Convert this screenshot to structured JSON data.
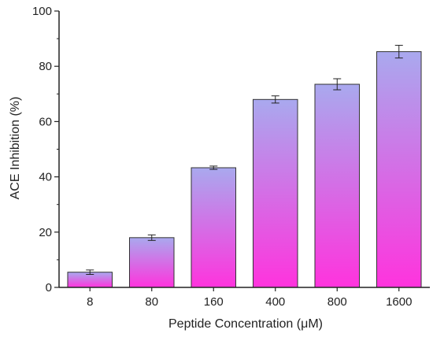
{
  "chart_data": {
    "type": "bar",
    "categories": [
      "8",
      "80",
      "160",
      "400",
      "800",
      "1600"
    ],
    "values": [
      5.5,
      18,
      43.3,
      68,
      73.5,
      85.3
    ],
    "errors": [
      0.8,
      1.0,
      0.6,
      1.3,
      2.0,
      2.3
    ],
    "title": "",
    "xlabel": "Peptide Concentration (μM)",
    "ylabel": "ACE Inhibition (%)",
    "ylim": [
      0,
      100
    ],
    "yticks": [
      0,
      20,
      40,
      60,
      80,
      100
    ],
    "grid": false,
    "colors": {
      "bar_top": "#a9a9ee",
      "bar_bottom": "#ff33dd",
      "bar_stroke": "#333333",
      "axis": "#222222"
    }
  }
}
